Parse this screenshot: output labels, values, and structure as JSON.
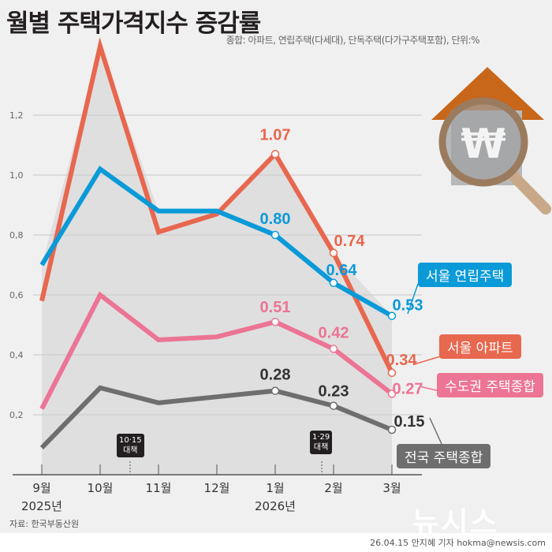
{
  "title": "월별 주택가격지수 증감률",
  "subtitle": "종합: 아파트, 연립주택(다세대), 단독주택(다가구주택포함), 단위:%",
  "source": "자료: 한국부동산원",
  "byline": "26.04.15 안지혜 기자 hokma@newsis.com",
  "logo_text": "뉴시스",
  "chart_data": {
    "type": "line",
    "categories": [
      "9월",
      "10월",
      "11월",
      "12월",
      "1월",
      "2월",
      "3월"
    ],
    "year_labels": [
      {
        "index": 0,
        "label": "2025년"
      },
      {
        "index": 4,
        "label": "2026년"
      }
    ],
    "yticks": [
      "0.2",
      "0.4",
      "0.6",
      "0.8",
      "1.0",
      "1.2"
    ],
    "ytick_labels": [
      "0,2",
      "0,4",
      "0,6",
      "0,8",
      "1,0",
      "1,2"
    ],
    "ylim": [
      0,
      1.45
    ],
    "grid": true,
    "series": [
      {
        "name": "서울 아파트",
        "color": "#e8674f",
        "values": [
          0.58,
          1.43,
          0.81,
          0.87,
          1.07,
          0.74,
          0.34
        ],
        "labels": [
          null,
          null,
          null,
          null,
          "1.07",
          "0.74",
          "0.34"
        ]
      },
      {
        "name": "서울 연립주택",
        "color": "#0a9ad8",
        "values": [
          0.7,
          1.02,
          0.88,
          0.88,
          0.8,
          0.64,
          0.53
        ],
        "labels": [
          null,
          null,
          null,
          null,
          "0.80",
          "0.64",
          "0.53"
        ]
      },
      {
        "name": "수도권 주택종합",
        "color": "#ec7494",
        "values": [
          0.22,
          0.6,
          0.45,
          0.46,
          0.51,
          0.42,
          0.27
        ],
        "labels": [
          null,
          null,
          null,
          null,
          "0.51",
          "0.42",
          "0.27"
        ]
      },
      {
        "name": "전국 주택종합",
        "color": "#6e6e6e",
        "values": [
          0.09,
          0.29,
          0.24,
          0.26,
          0.28,
          0.23,
          0.15
        ],
        "labels": [
          null,
          null,
          null,
          null,
          "0.28",
          "0.23",
          "0.15"
        ]
      }
    ],
    "annotations": [
      {
        "label": "10·15\n대책",
        "line1": "10·15",
        "line2": "대책",
        "between": [
          "10월",
          "11월"
        ]
      },
      {
        "label": "1·29\n대책",
        "line1": "1·29",
        "line2": "대책",
        "between": [
          "1월",
          "2월"
        ]
      }
    ]
  }
}
